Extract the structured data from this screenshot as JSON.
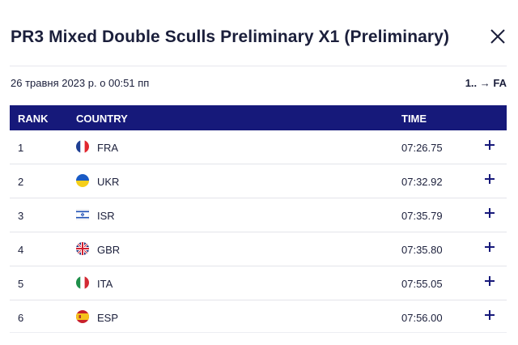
{
  "header": {
    "title": "PR3 Mixed Double Sculls Preliminary X1 (Preliminary)",
    "close_icon": "close-icon"
  },
  "meta": {
    "date": "26 травня 2023 р. о 00:51 пп",
    "progression": "1.. → FA"
  },
  "table": {
    "columns": {
      "rank": "RANK",
      "country": "COUNTRY",
      "time": "TIME"
    },
    "rows": [
      {
        "rank": "1",
        "flag": "france-flag-icon",
        "country": "FRA",
        "time": "07:26.75",
        "expand_icon": "plus-icon"
      },
      {
        "rank": "2",
        "flag": "ukraine-flag-icon",
        "country": "UKR",
        "time": "07:32.92",
        "expand_icon": "plus-icon"
      },
      {
        "rank": "3",
        "flag": "israel-flag-icon",
        "country": "ISR",
        "time": "07:35.79",
        "expand_icon": "plus-icon"
      },
      {
        "rank": "4",
        "flag": "uk-flag-icon",
        "country": "GBR",
        "time": "07:35.80",
        "expand_icon": "plus-icon"
      },
      {
        "rank": "5",
        "flag": "italy-flag-icon",
        "country": "ITA",
        "time": "07:55.05",
        "expand_icon": "plus-icon"
      },
      {
        "rank": "6",
        "flag": "spain-flag-icon",
        "country": "ESP",
        "time": "07:56.00",
        "expand_icon": "plus-icon"
      }
    ]
  },
  "colors": {
    "header_bg": "#16197a",
    "text": "#1b1f3b",
    "divider": "#e3e4ea"
  }
}
